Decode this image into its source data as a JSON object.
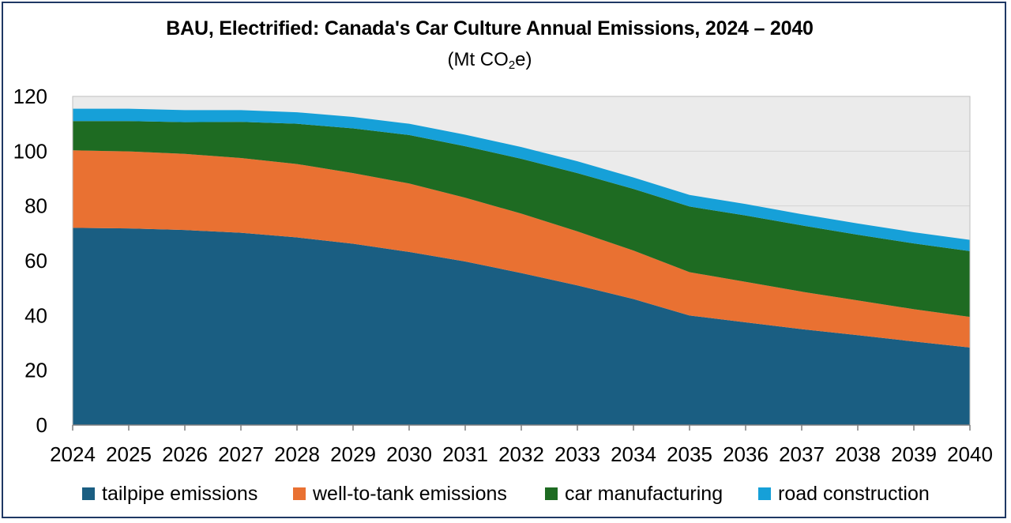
{
  "title": "BAU, Electrified: Canada's Car Culture Annual Emissions, 2024 – 2040",
  "subtitle_prefix": "(Mt CO",
  "subtitle_sub": "2",
  "subtitle_suffix": "e)",
  "chart_data": {
    "type": "area",
    "stacked": true,
    "x": [
      2024,
      2025,
      2026,
      2027,
      2028,
      2029,
      2030,
      2031,
      2032,
      2033,
      2034,
      2035,
      2036,
      2037,
      2038,
      2039,
      2040
    ],
    "ylim": [
      0,
      120
    ],
    "yticks": [
      0,
      20,
      40,
      60,
      80,
      100,
      120
    ],
    "grid": true,
    "legend": "bottom",
    "series": [
      {
        "name": "tailpipe emissions",
        "color": "#1a5e82",
        "values": [
          72,
          71.8,
          71.2,
          70.2,
          68.5,
          66.2,
          63.2,
          59.7,
          55.5,
          51.0,
          46.0,
          40.0,
          37.5,
          35.0,
          32.8,
          30.5,
          28.3
        ]
      },
      {
        "name": "well-to-tank emissions",
        "color": "#e97132",
        "values": [
          28.3,
          28.1,
          27.8,
          27.3,
          26.8,
          25.8,
          25.0,
          23.3,
          21.7,
          19.7,
          17.7,
          15.8,
          14.8,
          13.7,
          12.7,
          11.8,
          11.2
        ]
      },
      {
        "name": "car manufacturing",
        "color": "#1e6b22",
        "values": [
          10.7,
          11.1,
          11.6,
          13.2,
          14.7,
          16.3,
          17.7,
          18.8,
          20.0,
          21.3,
          22.5,
          24.0,
          24.2,
          24.2,
          24.0,
          24.0,
          24.0
        ]
      },
      {
        "name": "road construction",
        "color": "#16a0d8",
        "values": [
          4.5,
          4.5,
          4.4,
          4.3,
          4.2,
          4.2,
          4.1,
          4.2,
          4.3,
          4.3,
          4.2,
          4.2,
          4.2,
          4.1,
          4.1,
          4.1,
          4.1
        ]
      }
    ]
  }
}
